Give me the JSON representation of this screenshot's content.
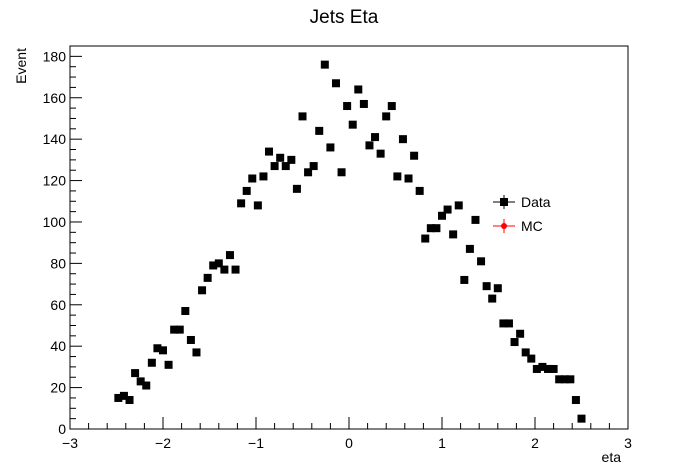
{
  "chart_data": {
    "type": "scatter",
    "title": "Jets Eta",
    "xlabel": "eta",
    "ylabel": "Event",
    "xlim": [
      -3,
      3
    ],
    "ylim": [
      0,
      185
    ],
    "xticks": [
      -3,
      -2,
      -1,
      0,
      1,
      2,
      3
    ],
    "yticks": [
      0,
      20,
      40,
      60,
      80,
      100,
      120,
      140,
      160,
      180
    ],
    "xtick_labels": [
      "−3",
      "−2",
      "−1",
      "0",
      "1",
      "2",
      "3"
    ],
    "ytick_labels": [
      "0",
      "20",
      "40",
      "60",
      "80",
      "100",
      "120",
      "140",
      "160",
      "180"
    ],
    "grid": false,
    "legend_position": "right",
    "series": [
      {
        "name": "Data",
        "color": "#000000",
        "marker": "square",
        "x": [
          -2.48,
          -2.42,
          -2.36,
          -2.3,
          -2.24,
          -2.18,
          -2.12,
          -2.06,
          -2.0,
          -1.94,
          -1.88,
          -1.82,
          -1.76,
          -1.7,
          -1.64,
          -1.58,
          -1.52,
          -1.46,
          -1.4,
          -1.34,
          -1.28,
          -1.22,
          -1.16,
          -1.1,
          -1.04,
          -0.98,
          -0.92,
          -0.86,
          -0.8,
          -0.74,
          -0.68,
          -0.62,
          -0.56,
          -0.5,
          -0.44,
          -0.38,
          -0.32,
          -0.26,
          -0.2,
          -0.14,
          -0.08,
          -0.02,
          0.04,
          0.1,
          0.16,
          0.22,
          0.28,
          0.34,
          0.4,
          0.46,
          0.52,
          0.58,
          0.64,
          0.7,
          0.76,
          0.82,
          0.88,
          0.94,
          1.0,
          1.06,
          1.12,
          1.18,
          1.24,
          1.3,
          1.36,
          1.42,
          1.48,
          1.54,
          1.6,
          1.66,
          1.72,
          1.78,
          1.84,
          1.9,
          1.96,
          2.02,
          2.08,
          2.14,
          2.2,
          2.26,
          2.32,
          2.38,
          2.44,
          2.5
        ],
        "y": [
          15,
          16,
          14,
          27,
          23,
          21,
          32,
          39,
          38,
          31,
          48,
          48,
          57,
          43,
          37,
          67,
          73,
          79,
          80,
          77,
          84,
          77,
          109,
          115,
          121,
          108,
          122,
          134,
          127,
          131,
          127,
          130,
          116,
          151,
          124,
          127,
          144,
          176,
          136,
          167,
          124,
          156,
          147,
          164,
          157,
          137,
          141,
          133,
          151,
          156,
          122,
          140,
          121,
          132,
          115,
          92,
          97,
          97,
          103,
          106,
          94,
          108,
          72,
          87,
          101,
          81,
          69,
          63,
          68,
          51,
          51,
          42,
          46,
          37,
          34,
          29,
          30,
          29,
          29,
          24,
          24,
          24,
          14,
          5
        ]
      }
    ],
    "legend": [
      {
        "name": "Data",
        "color": "#000000",
        "marker": "square"
      },
      {
        "name": "MC",
        "color": "#ff0000",
        "marker": "circle"
      }
    ]
  }
}
